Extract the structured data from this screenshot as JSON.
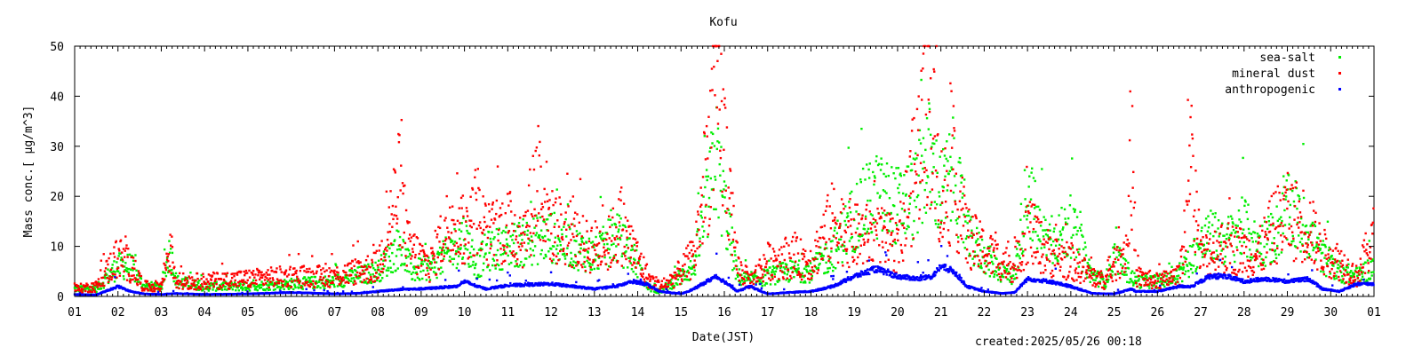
{
  "chart_data": {
    "type": "scatter",
    "title": "Kofu",
    "xlabel": "Date(JST)",
    "ylabel": "Mass conc.[ μg/m^3]",
    "ylim": [
      0,
      50
    ],
    "yticks": [
      "0",
      "10",
      "20",
      "30",
      "40",
      "50"
    ],
    "x_tick_labels": [
      "01",
      "02",
      "03",
      "04",
      "05",
      "06",
      "07",
      "08",
      "09",
      "10",
      "11",
      "12",
      "13",
      "14",
      "15",
      "16",
      "17",
      "18",
      "19",
      "20",
      "21",
      "22",
      "23",
      "24",
      "25",
      "26",
      "27",
      "28",
      "29",
      "30",
      "01"
    ],
    "xlim_days": [
      0,
      30
    ],
    "grid": false,
    "legend_position": "top-right",
    "created": "created:2025/05/26 00:18",
    "series": [
      {
        "name": "sea-salt",
        "color": "#00ee00",
        "trend": [
          [
            0,
            1.5
          ],
          [
            0.5,
            1.5
          ],
          [
            1,
            6
          ],
          [
            1.3,
            6
          ],
          [
            1.6,
            2
          ],
          [
            2,
            2
          ],
          [
            2.2,
            9
          ],
          [
            2.35,
            3
          ],
          [
            3,
            2
          ],
          [
            4,
            2
          ],
          [
            5,
            2.5
          ],
          [
            6,
            3
          ],
          [
            6.5,
            4
          ],
          [
            7,
            5
          ],
          [
            7.5,
            10
          ],
          [
            7.8,
            5
          ],
          [
            8.3,
            6
          ],
          [
            8.8,
            10
          ],
          [
            9,
            12
          ],
          [
            9.3,
            6
          ],
          [
            9.5,
            9
          ],
          [
            10,
            10
          ],
          [
            10.5,
            11
          ],
          [
            11,
            12
          ],
          [
            11.5,
            10
          ],
          [
            12,
            8
          ],
          [
            12.5,
            12
          ],
          [
            12.9,
            8
          ],
          [
            13.2,
            2
          ],
          [
            13.5,
            1
          ],
          [
            14,
            4
          ],
          [
            14.3,
            6
          ],
          [
            14.6,
            18
          ],
          [
            14.8,
            28
          ],
          [
            15.0,
            18
          ],
          [
            15.3,
            4
          ],
          [
            15.6,
            3
          ],
          [
            16,
            4
          ],
          [
            16.5,
            5
          ],
          [
            17,
            5
          ],
          [
            17.5,
            9
          ],
          [
            18,
            16
          ],
          [
            18.5,
            20
          ],
          [
            19,
            18
          ],
          [
            19.4,
            20
          ],
          [
            19.7,
            28
          ],
          [
            20,
            20
          ],
          [
            20.3,
            25
          ],
          [
            20.6,
            12
          ],
          [
            21,
            8
          ],
          [
            21.4,
            5
          ],
          [
            21.7,
            4
          ],
          [
            22,
            22
          ],
          [
            22.3,
            12
          ],
          [
            22.6,
            11
          ],
          [
            23,
            14
          ],
          [
            23.5,
            4
          ],
          [
            23.8,
            3
          ],
          [
            24,
            8
          ],
          [
            24.3,
            5
          ],
          [
            24.5,
            3
          ],
          [
            25,
            3
          ],
          [
            25.5,
            4
          ],
          [
            25.8,
            8
          ],
          [
            26.2,
            12
          ],
          [
            26.6,
            11
          ],
          [
            27,
            14
          ],
          [
            27.3,
            10
          ],
          [
            27.7,
            12
          ],
          [
            28,
            17
          ],
          [
            28.5,
            13
          ],
          [
            28.8,
            8
          ],
          [
            29.2,
            5
          ],
          [
            29.6,
            4
          ],
          [
            30,
            6
          ]
        ]
      },
      {
        "name": "mineral dust",
        "color": "#ff0000",
        "trend": [
          [
            0,
            1.5
          ],
          [
            0.5,
            2
          ],
          [
            1,
            8
          ],
          [
            1.3,
            6
          ],
          [
            1.6,
            2
          ],
          [
            2,
            2
          ],
          [
            2.2,
            10
          ],
          [
            2.35,
            3
          ],
          [
            3,
            3
          ],
          [
            4,
            3.5
          ],
          [
            5,
            4
          ],
          [
            6,
            4
          ],
          [
            6.5,
            5
          ],
          [
            7,
            6
          ],
          [
            7.5,
            22
          ],
          [
            7.7,
            10
          ],
          [
            8.2,
            6
          ],
          [
            8.8,
            18
          ],
          [
            9,
            12
          ],
          [
            9.3,
            18
          ],
          [
            9.5,
            12
          ],
          [
            10,
            14
          ],
          [
            10.4,
            12
          ],
          [
            10.7,
            25
          ],
          [
            11,
            14
          ],
          [
            11.5,
            12
          ],
          [
            11.8,
            10
          ],
          [
            12.3,
            10
          ],
          [
            12.6,
            14
          ],
          [
            12.9,
            9
          ],
          [
            13.3,
            3
          ],
          [
            13.6,
            2
          ],
          [
            14,
            5
          ],
          [
            14.3,
            8
          ],
          [
            14.6,
            25
          ],
          [
            14.8,
            42
          ],
          [
            15.0,
            30
          ],
          [
            15.3,
            6
          ],
          [
            15.6,
            3
          ],
          [
            16,
            7
          ],
          [
            16.5,
            8
          ],
          [
            17,
            7
          ],
          [
            17.5,
            15
          ],
          [
            18,
            12
          ],
          [
            18.5,
            12
          ],
          [
            19,
            10
          ],
          [
            19.4,
            25
          ],
          [
            19.7,
            40
          ],
          [
            20,
            20
          ],
          [
            20.3,
            22
          ],
          [
            20.6,
            12
          ],
          [
            21,
            9
          ],
          [
            21.4,
            7
          ],
          [
            21.7,
            6
          ],
          [
            22,
            14
          ],
          [
            22.3,
            10
          ],
          [
            22.6,
            8
          ],
          [
            23,
            7
          ],
          [
            23.5,
            4
          ],
          [
            23.8,
            3
          ],
          [
            24,
            6
          ],
          [
            24.3,
            10
          ],
          [
            24.4,
            30
          ],
          [
            24.5,
            4
          ],
          [
            25,
            3
          ],
          [
            25.5,
            4
          ],
          [
            25.8,
            26
          ],
          [
            26,
            8
          ],
          [
            26.5,
            10
          ],
          [
            27,
            9
          ],
          [
            27.3,
            8
          ],
          [
            27.7,
            14
          ],
          [
            28,
            16
          ],
          [
            28.5,
            14
          ],
          [
            28.8,
            9
          ],
          [
            29.2,
            7
          ],
          [
            29.6,
            4
          ],
          [
            30,
            12
          ]
        ]
      },
      {
        "name": "anthropogenic",
        "color": "#0000ff",
        "trend": [
          [
            0,
            0.4
          ],
          [
            0.5,
            0.3
          ],
          [
            1,
            2
          ],
          [
            1.3,
            1
          ],
          [
            1.6,
            0.5
          ],
          [
            2,
            0.4
          ],
          [
            2.3,
            0.6
          ],
          [
            3,
            0.4
          ],
          [
            4,
            0.5
          ],
          [
            5,
            0.8
          ],
          [
            6,
            0.5
          ],
          [
            6.5,
            0.6
          ],
          [
            7,
            1
          ],
          [
            7.5,
            1.4
          ],
          [
            8,
            1.5
          ],
          [
            8.8,
            2
          ],
          [
            9,
            3
          ],
          [
            9.3,
            2
          ],
          [
            9.5,
            1.5
          ],
          [
            10,
            2.2
          ],
          [
            11,
            2.5
          ],
          [
            11.5,
            2
          ],
          [
            12,
            1.5
          ],
          [
            12.5,
            2
          ],
          [
            12.9,
            3
          ],
          [
            13.2,
            2.5
          ],
          [
            13.5,
            1
          ],
          [
            14,
            0.5
          ],
          [
            14.3,
            1.5
          ],
          [
            14.6,
            3
          ],
          [
            14.8,
            4
          ],
          [
            15.0,
            3
          ],
          [
            15.3,
            1
          ],
          [
            15.6,
            2
          ],
          [
            16,
            0.5
          ],
          [
            16.5,
            0.8
          ],
          [
            17,
            1
          ],
          [
            17.5,
            2
          ],
          [
            18,
            4
          ],
          [
            18.5,
            5.5
          ],
          [
            19,
            4
          ],
          [
            19.5,
            3.5
          ],
          [
            19.8,
            4
          ],
          [
            20,
            6
          ],
          [
            20.3,
            5
          ],
          [
            20.6,
            2
          ],
          [
            21,
            1
          ],
          [
            21.4,
            0.6
          ],
          [
            21.7,
            0.8
          ],
          [
            22,
            3.5
          ],
          [
            22.5,
            3
          ],
          [
            23,
            2
          ],
          [
            23.5,
            0.6
          ],
          [
            24,
            0.5
          ],
          [
            24.4,
            1.5
          ],
          [
            24.5,
            1
          ],
          [
            25,
            1
          ],
          [
            25.5,
            2
          ],
          [
            25.8,
            2
          ],
          [
            26.2,
            4
          ],
          [
            26.6,
            4
          ],
          [
            27,
            3
          ],
          [
            27.5,
            3.5
          ],
          [
            28,
            3
          ],
          [
            28.5,
            3.5
          ],
          [
            28.8,
            1.5
          ],
          [
            29.2,
            1
          ],
          [
            29.6,
            2.5
          ],
          [
            30,
            2.5
          ]
        ]
      }
    ]
  }
}
